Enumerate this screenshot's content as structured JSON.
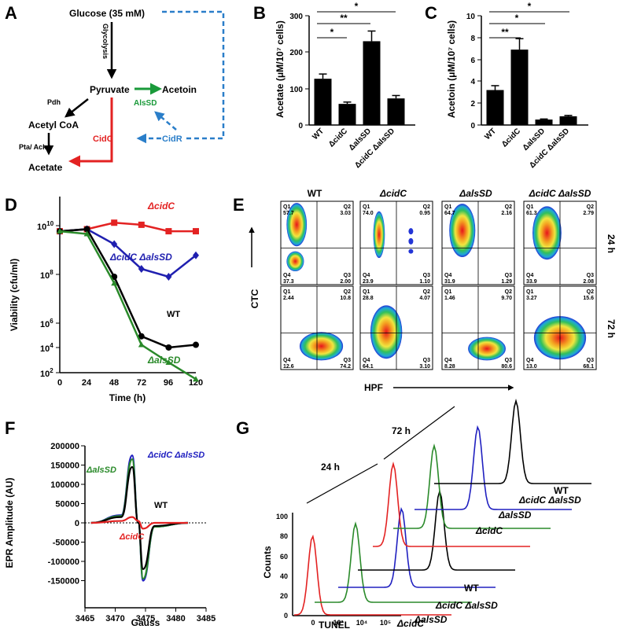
{
  "panels": {
    "A": {
      "label": "A",
      "glucose": "Glucose (35 mM)",
      "glycolysis": "Glycolysis",
      "pyruvate": "Pyruvate",
      "acetoin": "Acetoin",
      "pdh": "Pdh",
      "alssd": "AlsSD",
      "acetylcoa": "Acetyl CoA",
      "cidc": "CidC",
      "cidr": "CidR",
      "pta": "Pta/ AckA",
      "acetate": "Acetate",
      "colors": {
        "green": "#1a9a3a",
        "red": "#e32222",
        "blue": "#2a7ec9"
      }
    },
    "B": {
      "label": "B",
      "ylabel": "Acetate (μM/10⁷ cells)",
      "ticks": [
        "0",
        "100",
        "200",
        "300"
      ],
      "categories": [
        "WT",
        "ΔcidC",
        "ΔalsSD",
        "ΔcidC ΔalsSD"
      ],
      "sig": [
        "*",
        "**",
        "*"
      ]
    },
    "C": {
      "label": "C",
      "ylabel": "Acetoin (μM/10⁷ cells)",
      "ticks": [
        "0",
        "2",
        "4",
        "6",
        "8",
        "10"
      ],
      "categories": [
        "WT",
        "ΔcidC",
        "ΔalsSD",
        "ΔcidC ΔalsSD"
      ],
      "sig": [
        "**",
        "*",
        "*"
      ]
    },
    "D": {
      "label": "D",
      "ylabel": "Viability (cfu/ml)",
      "xlabel": "Time (h)",
      "xticks": [
        "0",
        "24",
        "48",
        "72",
        "96",
        "120"
      ],
      "series_labels": [
        "ΔcidC",
        "ΔcidC ΔalsSD",
        "WT",
        "ΔalsSD"
      ]
    },
    "E": {
      "label": "E",
      "cols": [
        "WT",
        "ΔcidC",
        "ΔalsSD",
        "ΔcidC ΔalsSD"
      ],
      "rows": [
        "24 h",
        "72 h"
      ],
      "ylabel": "CTC",
      "xlabel": "HPF",
      "q24": [
        [
          "57.7",
          "3.03",
          "37.3",
          "2.00"
        ],
        [
          "74.0",
          "0.95",
          "23.9",
          "1.10"
        ],
        [
          "64.7",
          "2.16",
          "31.9",
          "1.29"
        ],
        [
          "61.3",
          "2.79",
          "33.9",
          "2.08"
        ]
      ],
      "q72": [
        [
          "2.44",
          "10.8",
          "12.6",
          "74.2"
        ],
        [
          "28.8",
          "4.07",
          "64.1",
          "3.10"
        ],
        [
          "1.46",
          "9.70",
          "8.28",
          "80.6"
        ],
        [
          "3.27",
          "15.6",
          "13.0",
          "68.1"
        ]
      ]
    },
    "F": {
      "label": "F",
      "ylabel": "EPR Amplitude (AU)",
      "xlabel": "Gauss",
      "yticks": [
        "200000",
        "150000",
        "100000",
        "50000",
        "0",
        "-50000",
        "-100000",
        "-150000"
      ],
      "xticks": [
        "3465",
        "3470",
        "3475",
        "3480",
        "3485"
      ],
      "series_labels": [
        "ΔcidC ΔalsSD",
        "ΔalsSD",
        "WT",
        "ΔcidC"
      ]
    },
    "G": {
      "label": "G",
      "ylabel": "Counts",
      "xlabel": "TUNEL",
      "yticks": [
        "0",
        "20",
        "40",
        "60",
        "80",
        "100"
      ],
      "xticks": [
        "0",
        "10³",
        "10⁴",
        "10⁵"
      ],
      "t24": "24 h",
      "t72": "72 h",
      "labels24": [
        "WT",
        "ΔcidC ΔalsSD",
        "ΔalsSD",
        "ΔcidC"
      ],
      "labels72": [
        "WT",
        "ΔcidC ΔalsSD",
        "ΔalsSD",
        "ΔcidC"
      ]
    }
  },
  "chart_data": [
    {
      "type": "bar",
      "panel": "B",
      "categories": [
        "WT",
        "ΔcidC",
        "ΔalsSD",
        "ΔcidC ΔalsSD"
      ],
      "values": [
        127,
        58,
        230,
        73
      ],
      "errors": [
        13,
        5,
        28,
        8
      ],
      "ylabel": "Acetate (μM/10⁷ cells)",
      "ylim": [
        0,
        300
      ]
    },
    {
      "type": "bar",
      "panel": "C",
      "categories": [
        "WT",
        "ΔcidC",
        "ΔalsSD",
        "ΔcidC ΔalsSD"
      ],
      "values": [
        3.2,
        6.9,
        0.5,
        0.8
      ],
      "errors": [
        0.4,
        1.0,
        0.05,
        0.08
      ],
      "ylabel": "Acetoin (μM/10⁷ cells)",
      "ylim": [
        0,
        10
      ]
    },
    {
      "type": "line",
      "panel": "D",
      "x": [
        0,
        24,
        48,
        72,
        96,
        120
      ],
      "ylabel": "Viability (cfu/ml)",
      "xlabel": "Time (h)",
      "yscale": "log",
      "ylim": [
        100,
        10000000000
      ],
      "series": [
        {
          "name": "ΔcidC",
          "color": "#e32222",
          "values": [
            400000000,
            500000000,
            1000000000,
            800000000,
            400000000,
            400000000
          ]
        },
        {
          "name": "ΔcidC ΔalsSD",
          "color": "#2020b0",
          "values": [
            400000000,
            500000000,
            100000000,
            7000000,
            3000000,
            30000000
          ]
        },
        {
          "name": "WT",
          "color": "#000000",
          "values": [
            400000000,
            500000000,
            3000000,
            5000,
            1500,
            2000
          ]
        },
        {
          "name": "ΔalsSD",
          "color": "#2a8a2a",
          "values": [
            400000000,
            300000000,
            1500000,
            2000,
            300,
            50
          ]
        }
      ]
    },
    {
      "type": "line",
      "panel": "F",
      "xlabel": "Gauss",
      "ylabel": "EPR Amplitude (AU)",
      "xlim": [
        3465,
        3485
      ],
      "ylim": [
        -150000,
        200000
      ],
      "series": [
        {
          "name": "ΔcidC ΔalsSD",
          "color": "#2020c0",
          "x": [
            3466,
            3471,
            3472.8,
            3473.8,
            3474.6,
            3476.5,
            3482
          ],
          "values": [
            0,
            20000,
            175000,
            0,
            -150000,
            -10000,
            0
          ]
        },
        {
          "name": "ΔalsSD",
          "color": "#2a8a2a",
          "x": [
            3466,
            3471,
            3472.8,
            3473.8,
            3474.6,
            3476.5,
            3482
          ],
          "values": [
            0,
            18000,
            165000,
            0,
            -145000,
            -10000,
            0
          ]
        },
        {
          "name": "WT",
          "color": "#000000",
          "x": [
            3466,
            3471,
            3472.8,
            3473.8,
            3474.6,
            3476.5,
            3482
          ],
          "values": [
            0,
            15000,
            145000,
            0,
            -120000,
            -8000,
            0
          ]
        },
        {
          "name": "ΔcidC",
          "color": "#e32222",
          "x": [
            3466,
            3471,
            3472.8,
            3473.8,
            3474.6,
            3476.5,
            3482
          ],
          "values": [
            0,
            5000,
            15000,
            5000,
            -15000,
            0,
            0
          ]
        }
      ]
    }
  ]
}
